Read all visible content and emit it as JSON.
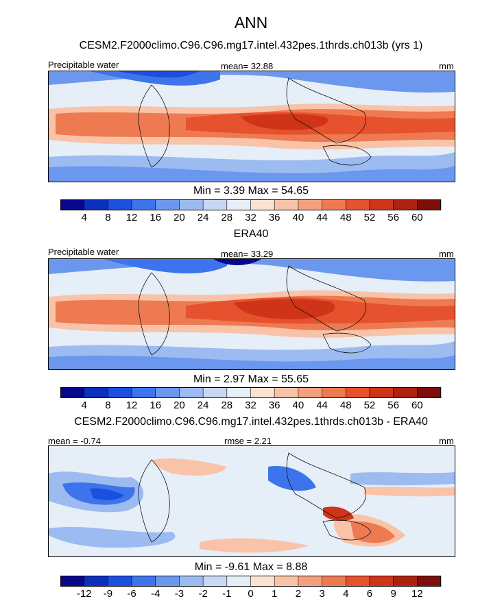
{
  "title": "ANN",
  "panels": [
    {
      "id": "model",
      "heading": "CESM2.F2000climo.C96.C96.mg17.intel.432pes.1thrds.ch013b (yrs 1)",
      "left_label": "Precipitable water",
      "center_label": "mean=  32.88",
      "right_label": "mm",
      "minmax": "Min =    3.39 Max =  54.65"
    },
    {
      "id": "obs",
      "heading": "ERA40",
      "left_label": "Precipitable water",
      "center_label": "mean=  33.29",
      "right_label": "mm",
      "minmax": "Min =    2.97 Max =  55.65"
    },
    {
      "id": "diff",
      "heading": "CESM2.F2000climo.C96.C96.mg17.intel.432pes.1thrds.ch013b - ERA40",
      "left_label": "mean =  -0.74",
      "center_label": "rmse =   2.21",
      "right_label": "mm",
      "minmax": "Min =  -9.61 Max =   8.88"
    }
  ],
  "chart_data": [
    {
      "type": "heatmap",
      "title": "CESM2.F2000climo.C96.C96.mg17.intel.432pes.1thrds.ch013b (yrs 1)",
      "variable": "Precipitable water",
      "units": "mm",
      "mean": 32.88,
      "min": 3.39,
      "max": 54.65,
      "colorbar_levels": [
        4,
        8,
        12,
        16,
        20,
        24,
        28,
        32,
        36,
        40,
        44,
        48,
        52,
        56,
        60
      ],
      "colors": [
        "#08088c",
        "#0c2fbe",
        "#1a4fe0",
        "#3d74ec",
        "#6b98ee",
        "#9cbbf0",
        "#c8d8f4",
        "#e6eef8",
        "#fbe3d4",
        "#f9c3a8",
        "#f4a07c",
        "#ee7a52",
        "#e6512e",
        "#cf3418",
        "#ad220f",
        "#7e0e0c"
      ]
    },
    {
      "type": "heatmap",
      "title": "ERA40",
      "variable": "Precipitable water",
      "units": "mm",
      "mean": 33.29,
      "min": 2.97,
      "max": 55.65,
      "colorbar_levels": [
        4,
        8,
        12,
        16,
        20,
        24,
        28,
        32,
        36,
        40,
        44,
        48,
        52,
        56,
        60
      ],
      "colors": [
        "#08088c",
        "#0c2fbe",
        "#1a4fe0",
        "#3d74ec",
        "#6b98ee",
        "#9cbbf0",
        "#c8d8f4",
        "#e6eef8",
        "#fbe3d4",
        "#f9c3a8",
        "#f4a07c",
        "#ee7a52",
        "#e6512e",
        "#cf3418",
        "#ad220f",
        "#7e0e0c"
      ]
    },
    {
      "type": "heatmap",
      "title": "CESM2.F2000climo.C96.C96.mg17.intel.432pes.1thrds.ch013b - ERA40",
      "units": "mm",
      "mean": -0.74,
      "rmse": 2.21,
      "min": -9.61,
      "max": 8.88,
      "colorbar_levels": [
        -12,
        -9,
        -6,
        -4,
        -3,
        -2,
        -1,
        0,
        1,
        2,
        3,
        4,
        6,
        9,
        12
      ],
      "colors": [
        "#08088c",
        "#0c2fbe",
        "#1a4fe0",
        "#3d74ec",
        "#6b98ee",
        "#9cbbf0",
        "#c8d8f4",
        "#e6eef8",
        "#fbe3d4",
        "#f9c3a8",
        "#f4a07c",
        "#ee7a52",
        "#e6512e",
        "#cf3418",
        "#ad220f",
        "#7e0e0c"
      ]
    }
  ]
}
